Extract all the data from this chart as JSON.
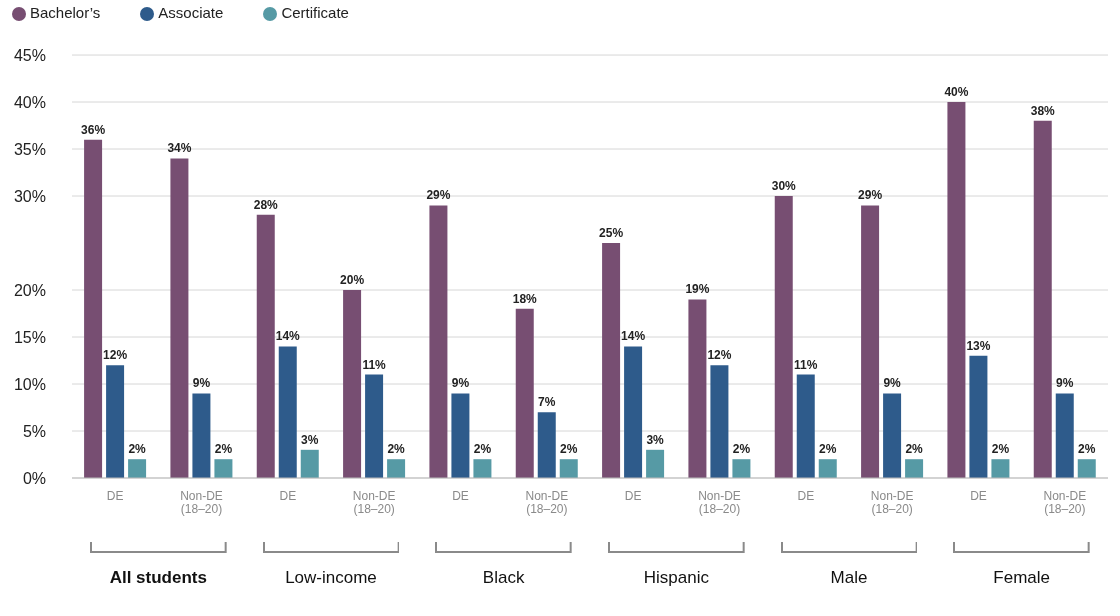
{
  "chart_data": {
    "type": "bar",
    "categories": [
      "DE",
      "Non-DE (18–20)",
      "DE",
      "Non-DE (18–20)",
      "DE",
      "Non-DE (18–20)",
      "DE",
      "Non-DE (18–20)",
      "DE",
      "Non-DE (18–20)",
      "DE",
      "Non-DE (18–20)"
    ],
    "series": [
      {
        "name": "Bachelor’s",
        "color": "#774e72",
        "values": [
          36,
          34,
          28,
          20,
          29,
          18,
          25,
          19,
          30,
          29,
          40,
          38
        ],
        "value_labels": [
          "36%",
          "34%",
          "28%",
          "20%",
          "29%",
          "18%",
          "25%",
          "19%",
          "30%",
          "29%",
          "40%",
          "38%"
        ]
      },
      {
        "name": "Associate",
        "color": "#2e5b8b",
        "values": [
          12,
          9,
          14,
          11,
          9,
          7,
          14,
          12,
          11,
          9,
          13,
          9
        ],
        "value_labels": [
          "12%",
          "9%",
          "14%",
          "11%",
          "9%",
          "7%",
          "14%",
          "12%",
          "11%",
          "9%",
          "13%",
          "9%"
        ]
      },
      {
        "name": "Certificate",
        "color": "#569aa5",
        "values": [
          2,
          2,
          3,
          2,
          2,
          2,
          3,
          2,
          2,
          2,
          2,
          2
        ],
        "value_labels": [
          "2%",
          "2%",
          "3%",
          "2%",
          "2%",
          "2%",
          "3%",
          "2%",
          "2%",
          "2%",
          "2%",
          "2%"
        ]
      }
    ],
    "ylim": [
      0,
      45
    ],
    "yticks": [
      {
        "value": 0,
        "label": "0%"
      },
      {
        "value": 5,
        "label": "5%"
      },
      {
        "value": 10,
        "label": "10%"
      },
      {
        "value": 15,
        "label": "15%"
      },
      {
        "value": 20,
        "label": "20%"
      },
      {
        "value": 30,
        "label": "30%"
      },
      {
        "value": 35,
        "label": "35%"
      },
      {
        "value": 40,
        "label": "40%"
      },
      {
        "value": 45,
        "label": "45%"
      }
    ],
    "grid": "y",
    "legend": "top left",
    "annotations": [
      "All students",
      "Low-income",
      "Black",
      "Hispanic",
      "Male",
      "Female"
    ]
  }
}
